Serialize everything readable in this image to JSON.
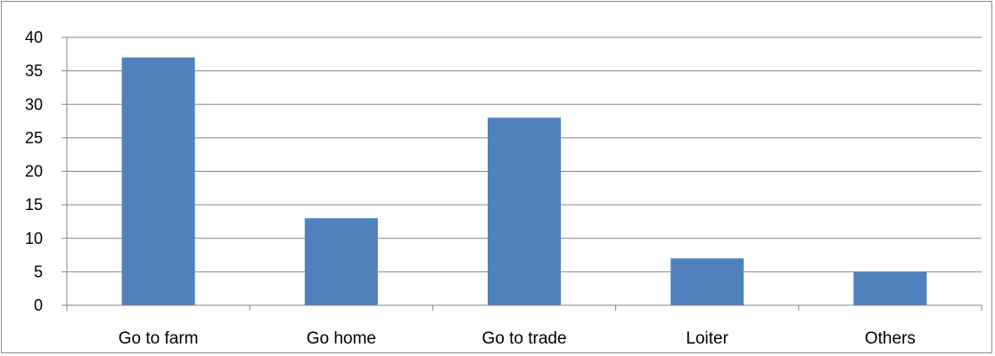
{
  "chart_data": {
    "type": "bar",
    "title": "",
    "xlabel": "",
    "ylabel": "",
    "categories": [
      "Go to farm",
      "Go home",
      "Go to trade",
      "Loiter",
      "Others"
    ],
    "values": [
      37,
      13,
      28,
      7,
      5
    ],
    "ylim": [
      0,
      40
    ],
    "yticks": [
      0,
      5,
      10,
      15,
      20,
      25,
      30,
      35,
      40
    ],
    "grid": true,
    "legend": "none",
    "bar_color": "#4f81bd",
    "grid_color": "#868686"
  }
}
